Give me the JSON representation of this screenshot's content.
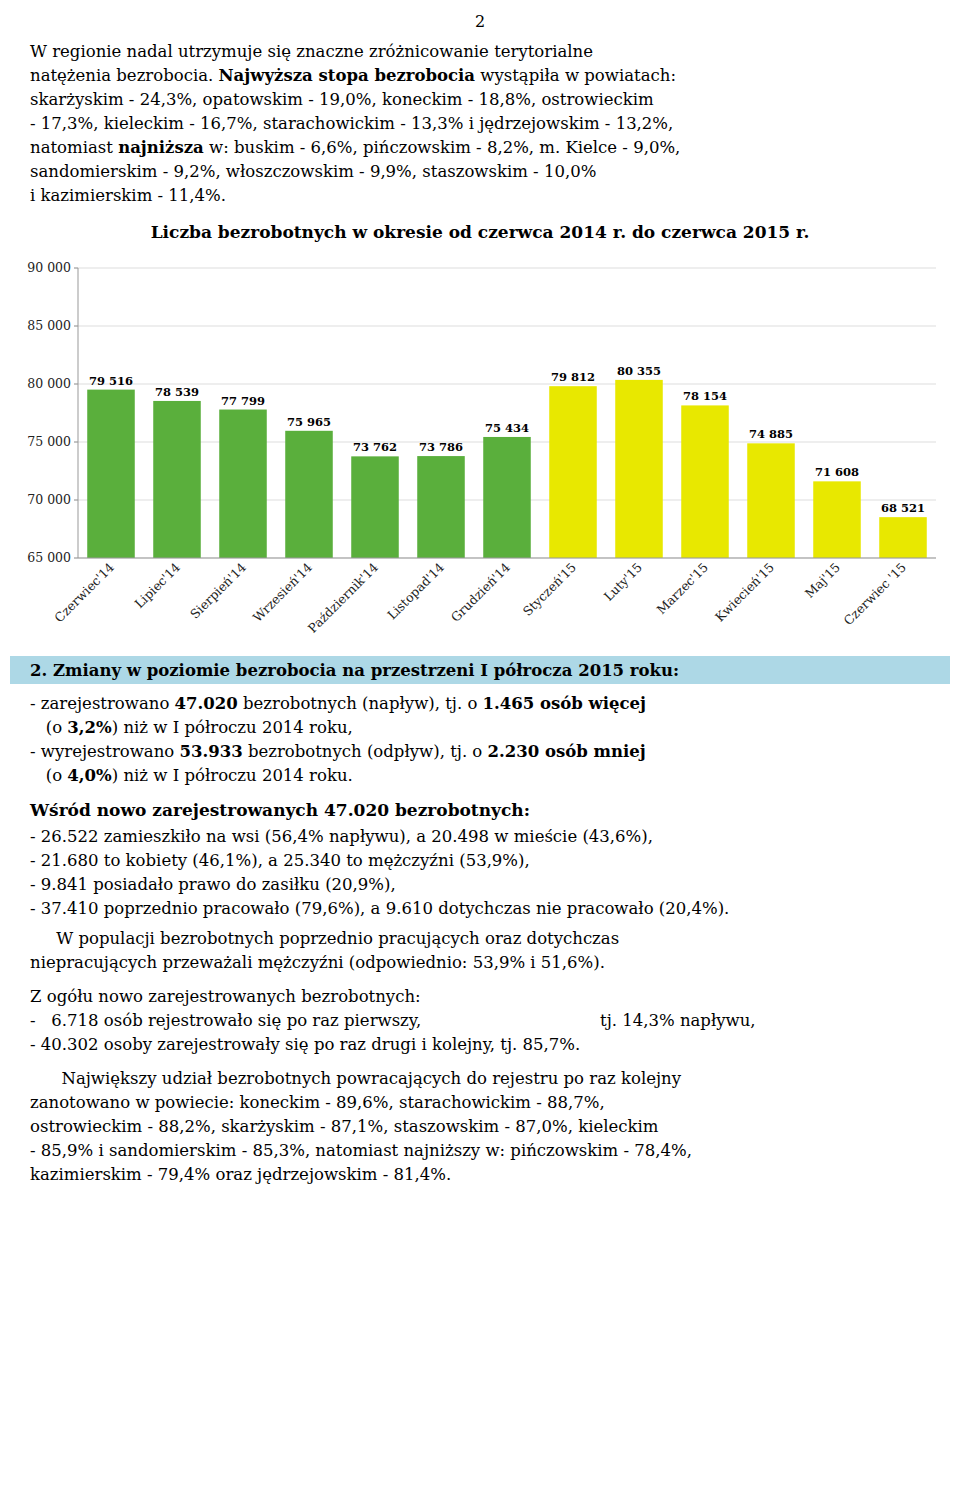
{
  "page_number": "2",
  "para1": [
    [
      {
        "text": "W regionie nadal utrzymuje się znaczne zróżnicowanie terytorialne",
        "bold": false
      }
    ],
    [
      {
        "text": "natężenia bezrobocia. ",
        "bold": false
      },
      {
        "text": "Najwyższa stopa bezrobocia",
        "bold": true
      },
      {
        "text": " wystąpiła w powiatach:",
        "bold": false
      }
    ],
    [
      {
        "text": "skarżyskim - 24,3%, opatowskim - 19,0%, koneckim - 18,8%, ostrowieckim",
        "bold": false
      }
    ],
    [
      {
        "text": "- 17,3%, kieleckim - 16,7%, starachowickim - 13,3% i jędrzejowskim - 13,2%,",
        "bold": false
      }
    ],
    [
      {
        "text": "natomiast ",
        "bold": false
      },
      {
        "text": "najniższa",
        "bold": true
      },
      {
        "text": " w: buskim - 6,6%, pińczowskim - 8,2%, m. Kielce - 9,0%,",
        "bold": false
      }
    ],
    [
      {
        "text": "sandomierskim - 9,2%, włoszczowskim - 9,9%, staszowskim - 10,0%",
        "bold": false
      }
    ],
    [
      {
        "text": "i kazimierskim - 11,4%.",
        "bold": false
      }
    ]
  ],
  "chart_data": {
    "type": "bar",
    "title": "Liczba bezrobotnych w okresie od czerwca 2014 r. do czerwca 2015 r.",
    "categories": [
      "Czerwiec'14",
      "Lipiec'14",
      "Sierpień'14",
      "Wrzesień'14",
      "Październik'14",
      "Listopad'14",
      "Grudzień'14",
      "Styczeń'15",
      "Luty'15",
      "Marzec'15",
      "Kwiecień'15",
      "Maj'15",
      "Czerwiec '15"
    ],
    "values": [
      79516,
      78539,
      77799,
      75965,
      73762,
      73786,
      75434,
      79812,
      80355,
      78154,
      74885,
      71608,
      68521
    ],
    "value_labels": [
      "79 516",
      "78 539",
      "77 799",
      "75 965",
      "73 762",
      "73 786",
      "75 434",
      "79 812",
      "80 355",
      "78 154",
      "74 885",
      "71 608",
      "68 521"
    ],
    "colors": [
      "#5aaf3c",
      "#5aaf3c",
      "#5aaf3c",
      "#5aaf3c",
      "#5aaf3c",
      "#5aaf3c",
      "#5aaf3c",
      "#e8e800",
      "#e8e800",
      "#e8e800",
      "#e8e800",
      "#e8e800",
      "#e8e800"
    ],
    "ylim": [
      65000,
      90000
    ],
    "yticks": [
      {
        "value": 65000,
        "label": "65 000"
      },
      {
        "value": 70000,
        "label": "70 000"
      },
      {
        "value": 75000,
        "label": "75 000"
      },
      {
        "value": 80000,
        "label": "80 000"
      },
      {
        "value": 85000,
        "label": "85 000"
      },
      {
        "value": 90000,
        "label": "90 000"
      }
    ],
    "grid": true,
    "data_labels": true
  },
  "section2_title": "2. Zmiany w poziomie bezrobocia na przestrzeni I półrocza 2015 roku:",
  "section2_lines": [
    [
      {
        "text": "- zarejestrowano ",
        "bold": false
      },
      {
        "text": "47.020",
        "bold": true
      },
      {
        "text": " bezrobotnych (napływ), tj. o ",
        "bold": false
      },
      {
        "text": "1.465 osób więcej",
        "bold": true
      }
    ],
    [
      {
        "text": "   (o ",
        "bold": false
      },
      {
        "text": "3,2%",
        "bold": true
      },
      {
        "text": ") niż w I półroczu 2014 roku,",
        "bold": false
      }
    ],
    [
      {
        "text": "- wyrejestrowano ",
        "bold": false
      },
      {
        "text": "53.933",
        "bold": true
      },
      {
        "text": " bezrobotnych (odpływ), tj. o ",
        "bold": false
      },
      {
        "text": "2.230 osób mniej",
        "bold": true
      }
    ],
    [
      {
        "text": "   (o ",
        "bold": false
      },
      {
        "text": "4,0%",
        "bold": true
      },
      {
        "text": ") niż w I półroczu 2014 roku.",
        "bold": false
      }
    ]
  ],
  "section3_title": [
    {
      "text": "Wśród nowo zarejestrowanych ",
      "bold": true
    },
    {
      "text": "47.020",
      "bold": true
    },
    {
      "text": " bezrobotnych:",
      "bold": true
    }
  ],
  "section3_items": [
    "- 26.522 zamieszkiło na wsi (56,4% napływu), a 20.498 w mieście (43,6%),",
    "- 21.680 to kobiety (46,1%), a 25.340 to mężczyźni (53,9%),",
    "- 9.841 posiadało prawo do zasiłku (20,9%),",
    "- 37.410 poprzednio pracowało (79,6%), a 9.610 dotychczas nie pracowało (20,4%)."
  ],
  "pop_lines": [
    "     W populacji bezrobotnych poprzednio pracujących oraz dotychczas",
    "niepracujących przeważali mężczyźni (odpowiednio: 53,9% i 51,6%)."
  ],
  "section4_title": "Z ogółu nowo zarejestrowanych bezrobotnych:",
  "section4_line1_left": "-   6.718 osób rejestrowało się po raz pierwszy,",
  "section4_line1_right": "tj. 14,3% napływu,",
  "section4_line2": "- 40.302 osoby zarejestrowały się po raz drugi i kolejny, tj. 85,7%.",
  "final_lines": [
    "      Największy udział bezrobotnych powracających do rejestru po raz kolejny",
    "zanotowano w powiecie: koneckim - 89,6%, starachowickim - 88,7%,",
    "ostrowieckim - 88,2%, skarżyskim - 87,1%, staszowskim - 87,0%, kieleckim",
    "- 85,9% i sandomierskim - 85,3%, natomiast najniższy w: pińczowskim - 78,4%,",
    "kazimierskim - 79,4% oraz jędrzejowskim - 81,4%."
  ]
}
